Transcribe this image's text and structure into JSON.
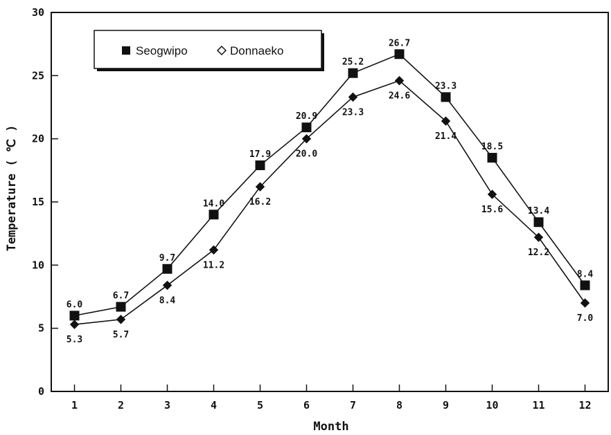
{
  "chart_data": {
    "type": "line",
    "xlabel": "Month",
    "ylabel": "Temperature ( ℃ )",
    "x": [
      1,
      2,
      3,
      4,
      5,
      6,
      7,
      8,
      9,
      10,
      11,
      12
    ],
    "xlim": [
      0.5,
      12.5
    ],
    "ylim": [
      0,
      30
    ],
    "yticks": [
      0,
      5,
      10,
      15,
      20,
      25,
      30
    ],
    "grid": false,
    "legend_position": "top-left",
    "series": [
      {
        "name": "Seogwipo",
        "marker": "square",
        "values": [
          6.0,
          6.7,
          9.7,
          14.0,
          17.9,
          20.9,
          25.2,
          26.7,
          23.3,
          18.5,
          13.4,
          8.4
        ],
        "labels": [
          "6.0",
          "6.7",
          "9.7",
          "14.0",
          "17.9",
          "20.9",
          "25.2",
          "26.7",
          "23.3",
          "18.5",
          "13.4",
          "8.4"
        ]
      },
      {
        "name": "Donnaeko",
        "marker": "diamond",
        "values": [
          5.3,
          5.7,
          8.4,
          11.2,
          16.2,
          20.0,
          23.3,
          24.6,
          21.4,
          15.6,
          12.2,
          7.0
        ],
        "labels": [
          "5.3",
          "5.7",
          "8.4",
          "11.2",
          "16.2",
          "20.0",
          "23.3",
          "24.6",
          "21.4",
          "15.6",
          "12.2",
          "7.0"
        ]
      }
    ]
  }
}
